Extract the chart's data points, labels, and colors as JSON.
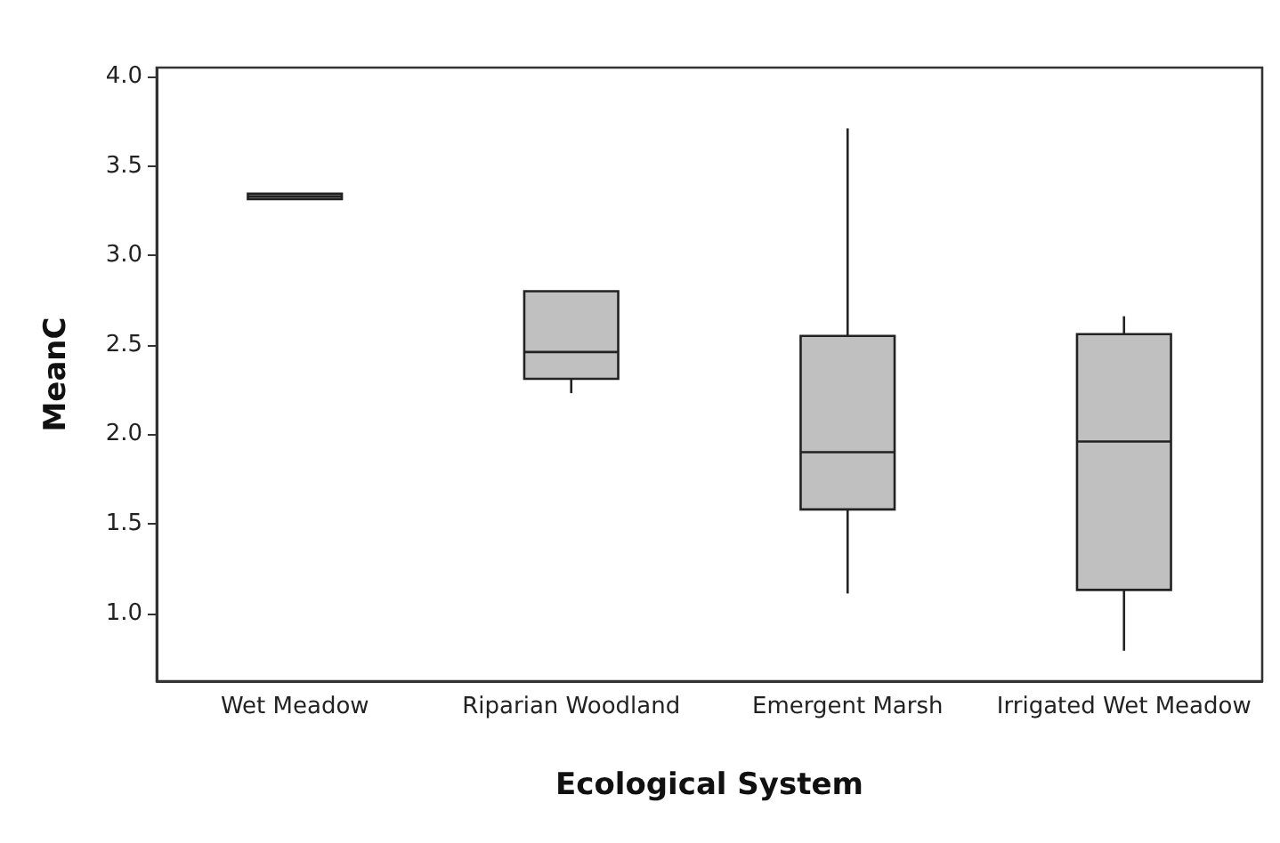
{
  "chart_data": {
    "type": "box",
    "xlabel": "Ecological System",
    "ylabel": "MeanC",
    "categories": [
      "Wet Meadow",
      "Riparian Woodland",
      "Emergent Marsh",
      "Irrigated Wet Meadow"
    ],
    "boxes": [
      {
        "low": 3.33,
        "q1": 3.33,
        "median": 3.33,
        "q3": 3.33,
        "high": 3.33
      },
      {
        "low": 2.23,
        "q1": 2.31,
        "median": 2.46,
        "q3": 2.8,
        "high": 2.8
      },
      {
        "low": 1.11,
        "q1": 1.58,
        "median": 1.9,
        "q3": 2.55,
        "high": 3.71
      },
      {
        "low": 0.79,
        "q1": 1.13,
        "median": 1.96,
        "q3": 2.56,
        "high": 2.66
      }
    ],
    "color": "#c0c0c0",
    "ylim": [
      0.62,
      4.05
    ],
    "yticks": [
      {
        "value": 1,
        "label": "1.0"
      },
      {
        "value": 1.5,
        "label": "1.5"
      },
      {
        "value": 2,
        "label": "2.0"
      },
      {
        "value": 2.5,
        "label": "2.5"
      },
      {
        "value": 3,
        "label": "3.0"
      },
      {
        "value": 3.5,
        "label": "3.5"
      },
      {
        "value": 4,
        "label": "4.0"
      }
    ],
    "grid": false
  }
}
